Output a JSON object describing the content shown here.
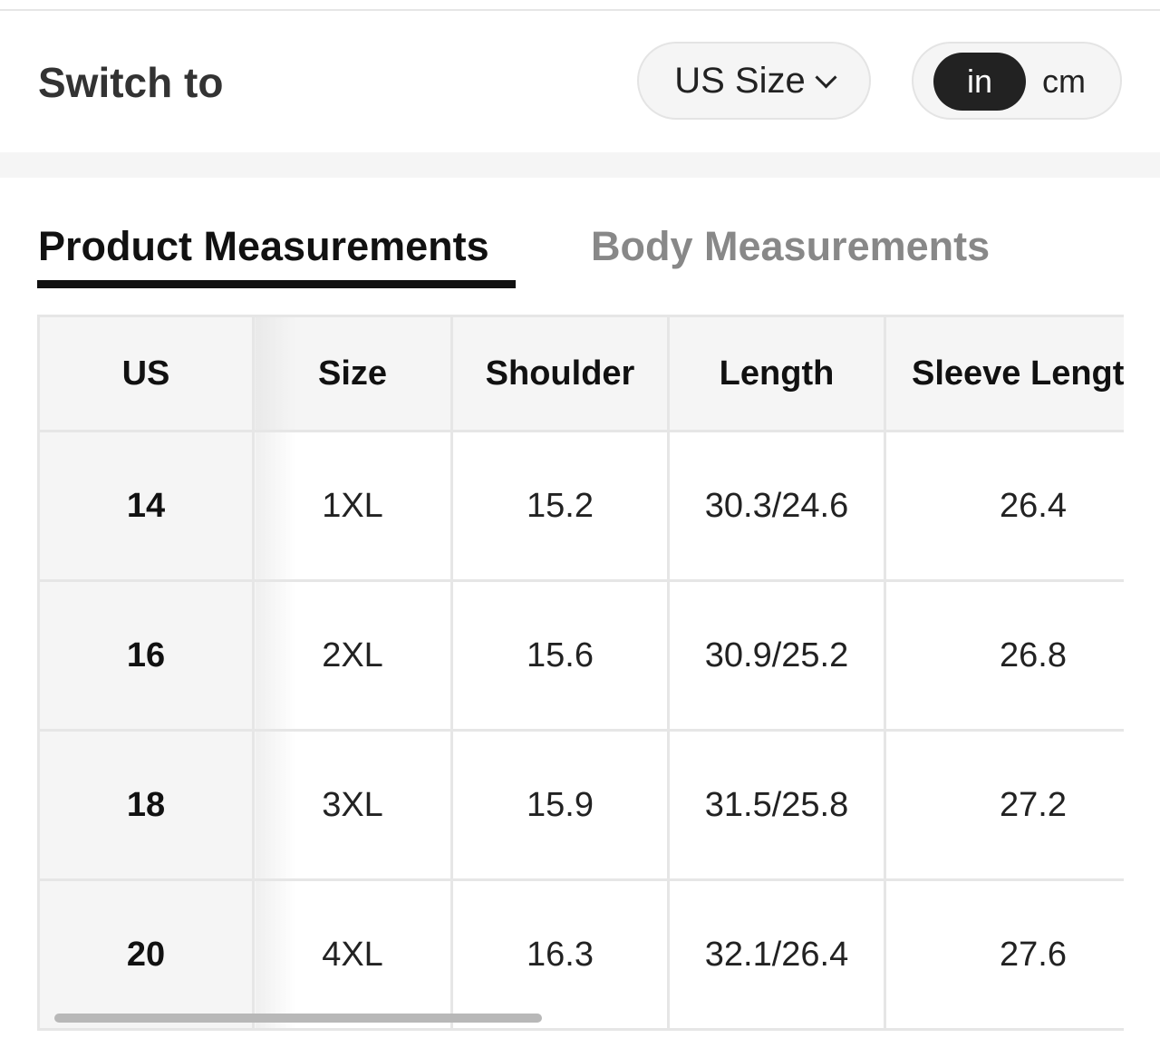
{
  "header": {
    "switch_label": "Switch to",
    "size_select": {
      "value": "US Size",
      "icon": "chevron-down-icon"
    },
    "units": [
      {
        "label": "in",
        "selected": true
      },
      {
        "label": "cm",
        "selected": false
      }
    ]
  },
  "tabs": [
    {
      "label": "Product Measurements",
      "active": true
    },
    {
      "label": "Body Measurements",
      "active": false
    }
  ],
  "table": {
    "columns": [
      "US",
      "Size",
      "Shoulder",
      "Length",
      "Sleeve Length"
    ],
    "rows": [
      [
        "14",
        "1XL",
        "15.2",
        "30.3/24.6",
        "26.4"
      ],
      [
        "16",
        "2XL",
        "15.6",
        "30.9/25.2",
        "26.8"
      ],
      [
        "18",
        "3XL",
        "15.9",
        "31.5/25.8",
        "27.2"
      ],
      [
        "20",
        "4XL",
        "16.3",
        "32.1/26.4",
        "27.6"
      ]
    ]
  },
  "colors": {
    "accent": "#222222",
    "inactive_tab": "#888888",
    "header_bg": "#f5f5f5"
  }
}
